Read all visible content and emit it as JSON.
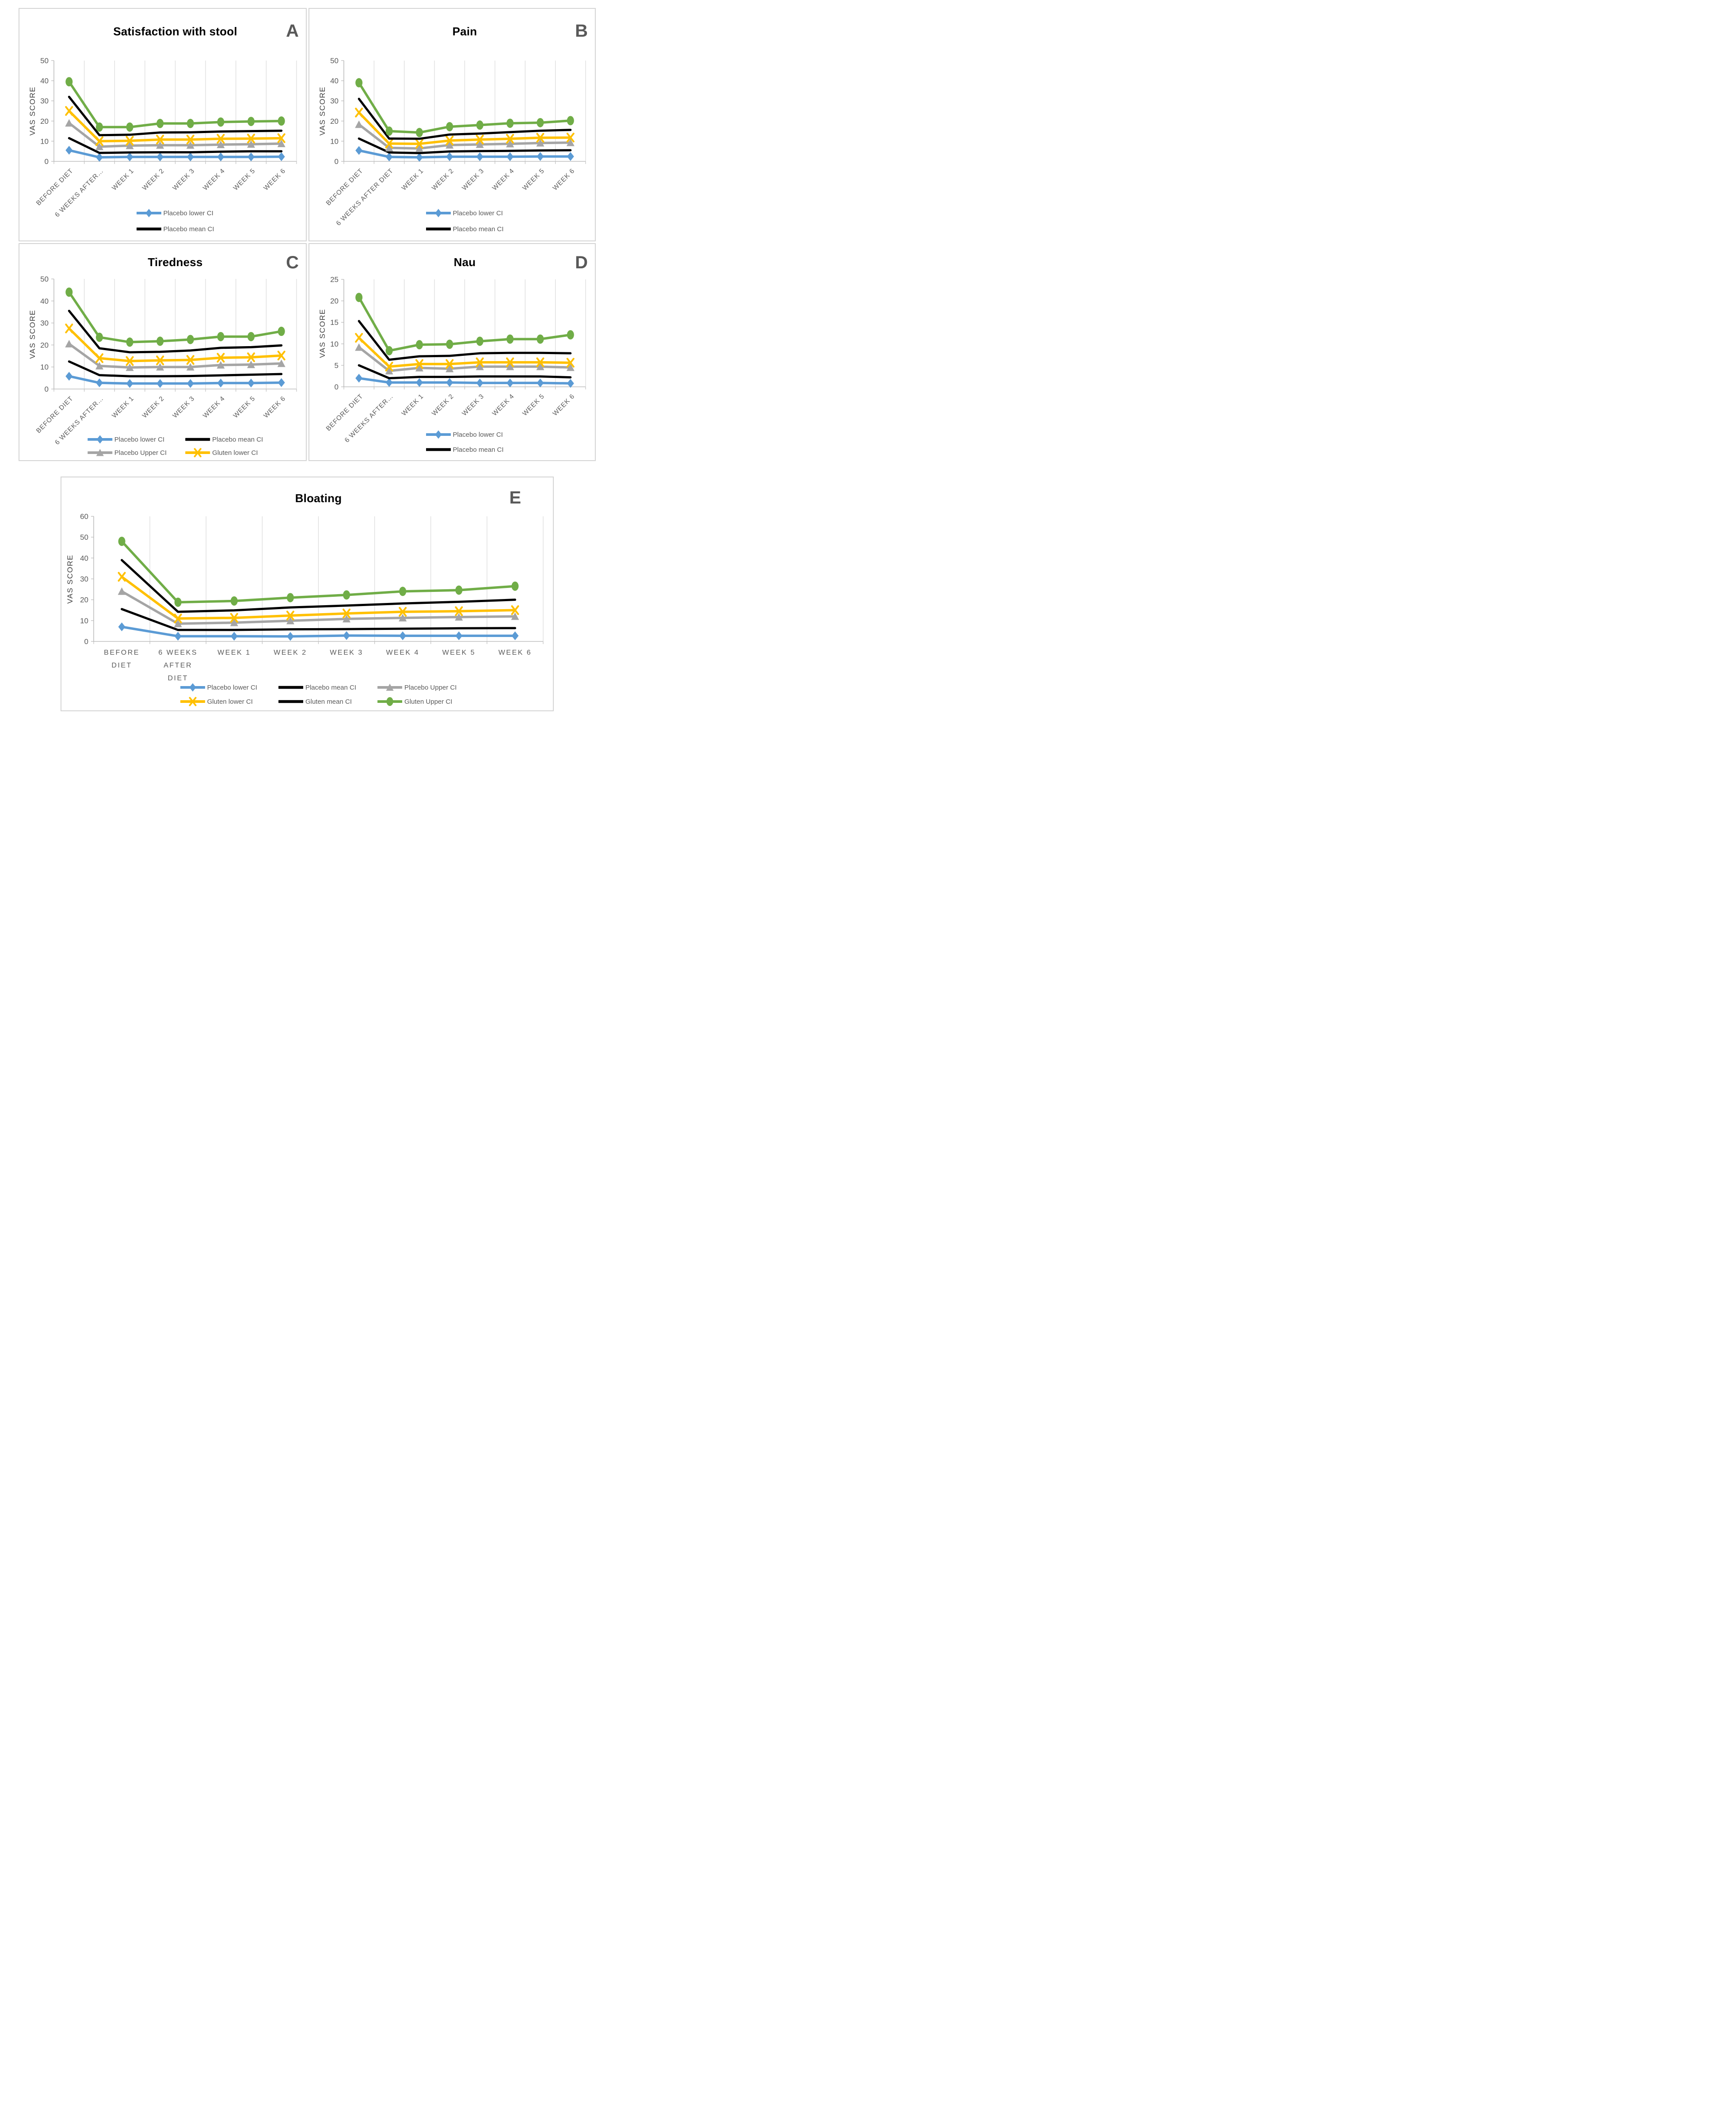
{
  "figure": {
    "y_axis_title": "VAS SCORE",
    "panel_labels": [
      "A",
      "B",
      "C",
      "D",
      "E"
    ]
  },
  "styles": {
    "placebo_lower_blue": "#5B9BD5",
    "mean_black": "#000000",
    "placebo_upper_gray": "#A5A5A5",
    "gluten_lower_yellow": "#FFC000",
    "gluten_upper_green": "#70AD47",
    "label_gray": "#595959",
    "gridline_gray": "#D9D9D9",
    "axis_gray": "#BFBFBF"
  },
  "chart_data": [
    {
      "id": "A",
      "type": "line",
      "title": "Satisfaction with stool",
      "panel_label": "A",
      "ylabel": "VAS SCORE",
      "ylim": [
        0,
        50
      ],
      "ytick_step": 10,
      "grid": "vertical-only",
      "legend_position": "bottom",
      "legend_cols": 1,
      "categories": [
        "BEFORE DIET",
        "6 WEEKS AFTER…",
        "WEEK 1",
        "WEEK 2",
        "WEEK 3",
        "WEEK 4",
        "WEEK 5",
        "WEEK 6"
      ],
      "series": [
        {
          "name": "Placebo lower CI",
          "color": "#5B9BD5",
          "marker": "diamond",
          "values": [
            5.5,
            2.0,
            2.2,
            2.2,
            2.2,
            2.2,
            2.2,
            2.3
          ]
        },
        {
          "name": "Placebo mean CI",
          "color": "#000000",
          "marker": "none",
          "values": [
            11.5,
            4.2,
            4.4,
            4.5,
            4.5,
            4.8,
            5.0,
            5.0
          ]
        },
        {
          "name": "Placebo Upper CI",
          "color": "#A5A5A5",
          "marker": "triangle",
          "values": [
            19.0,
            7.3,
            7.8,
            8.0,
            8.0,
            8.3,
            8.5,
            8.8
          ]
        },
        {
          "name": "Gluten lower CI",
          "color": "#FFC000",
          "marker": "x",
          "values": [
            25.0,
            10.0,
            10.2,
            10.8,
            10.8,
            11.2,
            11.3,
            11.5
          ]
        },
        {
          "name": "Gluten mean CI",
          "color": "#000000",
          "marker": "none",
          "values": [
            32.0,
            13.0,
            13.2,
            14.3,
            14.4,
            14.8,
            15.0,
            15.2
          ]
        },
        {
          "name": "Gluten Upper CI",
          "color": "#70AD47",
          "marker": "circle",
          "values": [
            39.5,
            17.0,
            17.0,
            18.8,
            18.8,
            19.5,
            19.8,
            20.0
          ]
        }
      ],
      "legend_entries": [
        "Placebo lower CI",
        "Placebo mean CI"
      ]
    },
    {
      "id": "B",
      "type": "line",
      "title": "Pain",
      "panel_label": "B",
      "ylabel": "VAS SCORE",
      "ylim": [
        0,
        50
      ],
      "ytick_step": 10,
      "grid": "vertical-only",
      "legend_position": "bottom",
      "legend_cols": 1,
      "categories": [
        "BEFORE DIET",
        "6 WEEKS AFTER DIET",
        "WEEK 1",
        "WEEK 2",
        "WEEK 3",
        "WEEK 4",
        "WEEK 5",
        "WEEK 6"
      ],
      "series": [
        {
          "name": "Placebo lower CI",
          "color": "#5B9BD5",
          "marker": "diamond",
          "values": [
            5.4,
            2.2,
            2.0,
            2.3,
            2.3,
            2.3,
            2.4,
            2.4
          ]
        },
        {
          "name": "Placebo mean CI",
          "color": "#000000",
          "marker": "none",
          "values": [
            11.3,
            4.4,
            4.1,
            4.9,
            5.1,
            5.2,
            5.4,
            5.5
          ]
        },
        {
          "name": "Placebo Upper CI",
          "color": "#A5A5A5",
          "marker": "triangle",
          "values": [
            18.3,
            6.7,
            6.4,
            8.1,
            8.4,
            8.7,
            9.1,
            9.3
          ]
        },
        {
          "name": "Gluten lower CI",
          "color": "#FFC000",
          "marker": "x",
          "values": [
            24.2,
            8.8,
            8.7,
            10.3,
            10.8,
            11.2,
            11.7,
            11.8
          ]
        },
        {
          "name": "Gluten mean CI",
          "color": "#000000",
          "marker": "none",
          "values": [
            31.0,
            11.3,
            11.2,
            13.3,
            13.8,
            14.5,
            15.2,
            15.6
          ]
        },
        {
          "name": "Gluten Upper CI",
          "color": "#70AD47",
          "marker": "circle",
          "values": [
            39.0,
            15.0,
            14.3,
            17.2,
            18.0,
            18.9,
            19.2,
            20.2
          ]
        }
      ],
      "legend_entries": [
        "Placebo lower CI",
        "Placebo mean CI"
      ]
    },
    {
      "id": "C",
      "type": "line",
      "title": "Tiredness",
      "panel_label": "C",
      "ylabel": "VAS SCORE",
      "ylim": [
        0,
        50
      ],
      "ytick_step": 10,
      "grid": "vertical-only",
      "legend_position": "bottom",
      "legend_cols": 2,
      "categories": [
        "BEFORE DIET",
        "6 WEEKS AFTER…",
        "WEEK 1",
        "WEEK 2",
        "WEEK 3",
        "WEEK 4",
        "WEEK 5",
        "WEEK 6"
      ],
      "series": [
        {
          "name": "Placebo lower CI",
          "color": "#5B9BD5",
          "marker": "diamond",
          "values": [
            5.8,
            2.8,
            2.5,
            2.5,
            2.5,
            2.7,
            2.7,
            2.9
          ]
        },
        {
          "name": "Placebo mean CI",
          "color": "#000000",
          "marker": "none",
          "values": [
            12.5,
            6.3,
            5.8,
            5.8,
            5.9,
            6.2,
            6.5,
            6.8
          ]
        },
        {
          "name": "Placebo Upper CI",
          "color": "#A5A5A5",
          "marker": "triangle",
          "values": [
            20.5,
            10.5,
            9.8,
            10.0,
            10.0,
            10.9,
            11.1,
            11.6
          ]
        },
        {
          "name": "Gluten lower CI",
          "color": "#FFC000",
          "marker": "x",
          "values": [
            27.5,
            14.0,
            12.7,
            13.0,
            13.2,
            14.2,
            14.4,
            15.2
          ]
        },
        {
          "name": "Gluten mean CI",
          "color": "#000000",
          "marker": "none",
          "values": [
            35.5,
            18.5,
            16.7,
            16.9,
            17.5,
            18.7,
            19.0,
            19.8
          ]
        },
        {
          "name": "Gluten Upper CI",
          "color": "#70AD47",
          "marker": "circle",
          "values": [
            44.0,
            23.5,
            21.3,
            21.7,
            22.5,
            23.8,
            23.8,
            26.2
          ]
        }
      ],
      "legend_entries": [
        "Placebo lower CI",
        "Placebo mean CI",
        "Placebo Upper CI",
        "Gluten lower CI"
      ]
    },
    {
      "id": "D",
      "type": "line",
      "title": "Nau",
      "panel_label": "D",
      "ylabel": "VAS SCORE",
      "ylim": [
        0,
        25
      ],
      "ytick_step": 5,
      "grid": "vertical-only",
      "legend_position": "bottom",
      "legend_cols": 1,
      "categories": [
        "BEFORE DIET",
        "6 WEEKS AFTER…",
        "WEEK 1",
        "WEEK 2",
        "WEEK 3",
        "WEEK 4",
        "WEEK 5",
        "WEEK 6"
      ],
      "series": [
        {
          "name": "Placebo lower CI",
          "color": "#5B9BD5",
          "marker": "diamond",
          "values": [
            2.0,
            1.0,
            1.0,
            1.0,
            0.9,
            0.9,
            0.9,
            0.8
          ]
        },
        {
          "name": "Placebo mean CI",
          "color": "#000000",
          "marker": "none",
          "values": [
            5.0,
            2.0,
            2.3,
            2.3,
            2.4,
            2.4,
            2.4,
            2.2
          ]
        },
        {
          "name": "Placebo Upper CI",
          "color": "#A5A5A5",
          "marker": "triangle",
          "values": [
            9.2,
            3.7,
            4.4,
            4.2,
            4.7,
            4.7,
            4.7,
            4.5
          ]
        },
        {
          "name": "Gluten lower CI",
          "color": "#FFC000",
          "marker": "x",
          "values": [
            11.4,
            4.7,
            5.3,
            5.3,
            5.7,
            5.7,
            5.7,
            5.6
          ]
        },
        {
          "name": "Gluten mean CI",
          "color": "#000000",
          "marker": "none",
          "values": [
            15.3,
            6.3,
            7.1,
            7.2,
            7.8,
            7.9,
            7.9,
            7.8
          ]
        },
        {
          "name": "Gluten Upper CI",
          "color": "#70AD47",
          "marker": "circle",
          "values": [
            20.8,
            8.4,
            9.8,
            9.9,
            10.6,
            11.1,
            11.1,
            12.1
          ]
        }
      ],
      "legend_entries": [
        "Placebo lower CI",
        "Placebo mean CI"
      ]
    },
    {
      "id": "E",
      "type": "line",
      "title": "Bloating",
      "panel_label": "E",
      "ylabel": "VAS SCORE",
      "ylim": [
        0,
        60
      ],
      "ytick_step": 10,
      "grid": "vertical-only",
      "legend_position": "bottom",
      "legend_cols": 3,
      "categories": [
        "BEFORE DIET",
        "6 WEEKS AFTER DIET",
        "WEEK 1",
        "WEEK 2",
        "WEEK 3",
        "WEEK 4",
        "WEEK 5",
        "WEEK 6"
      ],
      "series": [
        {
          "name": "Placebo lower CI",
          "color": "#5B9BD5",
          "marker": "diamond",
          "values": [
            7.0,
            2.5,
            2.5,
            2.4,
            2.8,
            2.7,
            2.7,
            2.7
          ]
        },
        {
          "name": "Placebo mean CI",
          "color": "#000000",
          "marker": "none",
          "values": [
            15.5,
            5.5,
            5.5,
            5.8,
            5.9,
            6.1,
            6.3,
            6.4
          ]
        },
        {
          "name": "Placebo Upper CI",
          "color": "#A5A5A5",
          "marker": "triangle",
          "values": [
            24.0,
            8.5,
            9.0,
            9.9,
            10.8,
            11.3,
            11.7,
            12.0
          ]
        },
        {
          "name": "Gluten lower CI",
          "color": "#FFC000",
          "marker": "x",
          "values": [
            31.0,
            11.0,
            11.3,
            12.4,
            13.4,
            14.2,
            14.5,
            15.0
          ]
        },
        {
          "name": "Gluten mean CI",
          "color": "#000000",
          "marker": "none",
          "values": [
            39.0,
            14.2,
            14.9,
            16.3,
            17.2,
            18.2,
            19.0,
            20.0
          ]
        },
        {
          "name": "Gluten Upper CI",
          "color": "#70AD47",
          "marker": "circle",
          "values": [
            48.0,
            18.8,
            19.4,
            21.0,
            22.3,
            24.0,
            24.6,
            26.5
          ]
        }
      ],
      "legend_entries": [
        "Placebo lower CI",
        "Placebo mean CI",
        "Placebo Upper CI",
        "Gluten lower CI",
        "Gluten mean CI",
        "Gluten Upper CI"
      ]
    }
  ]
}
